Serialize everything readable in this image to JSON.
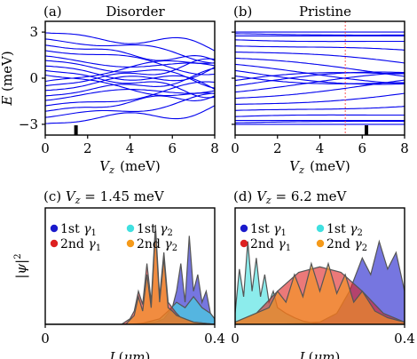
{
  "chart_data": [
    {
      "panel": "a",
      "type": "line",
      "label": "(a)",
      "title": "Disorder",
      "xlabel": "V_z (meV)",
      "ylabel": "E (meV)",
      "xlim": [
        0,
        8
      ],
      "ylim": [
        -3.7,
        3.7
      ],
      "xticks": [
        "0",
        "2",
        "4",
        "6",
        "8"
      ],
      "yticks": [
        "−3",
        "0",
        "3"
      ],
      "marker_x": 1.45,
      "color": "#0000ee",
      "band_edges": [
        2.95,
        2.55,
        2.15,
        1.8,
        1.45,
        1.15,
        0.8,
        0.5,
        0.2
      ],
      "band_ends": [
        2.0,
        1.4,
        1.0,
        0.6,
        0.3,
        -0.2,
        -0.6,
        -1.0,
        -1.4
      ]
    },
    {
      "panel": "b",
      "type": "line",
      "label": "(b)",
      "title": "Pristine",
      "xlabel": "V_z (meV)",
      "ylabel": "",
      "xlim": [
        0,
        8
      ],
      "ylim": [
        -3.7,
        3.7
      ],
      "xticks": [
        "0",
        "2",
        "4",
        "6",
        "8"
      ],
      "marker_x": 6.2,
      "dashed_x": 5.2,
      "color": "#0000ee",
      "band_edges": [
        2.9,
        2.5,
        2.1,
        1.7,
        1.3,
        0.9,
        0.5,
        0.15
      ],
      "band_ends": [
        2.7,
        2.0,
        1.3,
        0.7,
        0.1,
        -0.5,
        -1.1,
        -1.7
      ]
    },
    {
      "panel": "c",
      "type": "area",
      "label": "(c)",
      "title": "V_z = 1.45 meV",
      "xlabel": "L(μm)",
      "ylabel": "|ψ|²",
      "xlim": [
        0,
        0.4
      ],
      "xticks": [
        "0",
        "0.4"
      ],
      "legend": [
        "1st γ1",
        "1st γ2",
        "2nd γ1",
        "2nd γ2"
      ],
      "legend_colors": [
        "#1a1acc",
        "#40e0e0",
        "#dd2020",
        "#f59a1a"
      ],
      "series": [
        {
          "name": "1st γ1",
          "color": "#1a1acc",
          "x": [
            0.0,
            0.2,
            0.26,
            0.28,
            0.3,
            0.31,
            0.32,
            0.33,
            0.34,
            0.35,
            0.36,
            0.37,
            0.38,
            0.39,
            0.4
          ],
          "y": [
            0,
            0,
            0.02,
            0.05,
            0.15,
            0.3,
            0.55,
            0.2,
            0.8,
            0.3,
            0.45,
            0.2,
            0.3,
            0.1,
            0.05
          ]
        },
        {
          "name": "1st γ2",
          "color": "#40e0e0",
          "x": [
            0.0,
            0.22,
            0.27,
            0.29,
            0.31,
            0.33,
            0.35,
            0.37,
            0.39,
            0.4
          ],
          "y": [
            0,
            0,
            0.05,
            0.12,
            0.2,
            0.15,
            0.25,
            0.15,
            0.1,
            0.05
          ]
        },
        {
          "name": "2nd γ1",
          "color": "#dd2020",
          "x": [
            0.0,
            0.18,
            0.2,
            0.21,
            0.22,
            0.23,
            0.24,
            0.25,
            0.26,
            0.27,
            0.28,
            0.29,
            0.3,
            0.31,
            0.32,
            0.35,
            0.4
          ],
          "y": [
            0,
            0,
            0.05,
            0.12,
            0.3,
            0.18,
            0.55,
            0.2,
            0.9,
            0.25,
            0.65,
            0.2,
            0.15,
            0.1,
            0.06,
            0.02,
            0
          ]
        },
        {
          "name": "2nd γ2",
          "color": "#f59a1a",
          "x": [
            0.0,
            0.19,
            0.21,
            0.22,
            0.23,
            0.24,
            0.25,
            0.26,
            0.27,
            0.28,
            0.29,
            0.3,
            0.31,
            0.33,
            0.35,
            0.4
          ],
          "y": [
            0,
            0,
            0.08,
            0.25,
            0.12,
            0.45,
            0.15,
            0.85,
            0.2,
            0.6,
            0.15,
            0.12,
            0.08,
            0.05,
            0.02,
            0
          ]
        }
      ]
    },
    {
      "panel": "d",
      "type": "area",
      "label": "(d)",
      "title": "V_z = 6.2 meV",
      "xlabel": "L(μm)",
      "ylabel": "",
      "xlim": [
        0,
        0.4
      ],
      "xticks": [
        "0",
        "0.4"
      ],
      "legend": [
        "1st γ1",
        "1st γ2",
        "2nd γ1",
        "2nd γ2"
      ],
      "legend_colors": [
        "#1a1acc",
        "#40e0e0",
        "#dd2020",
        "#f59a1a"
      ],
      "series": [
        {
          "name": "1st γ1",
          "color": "#1a1acc",
          "x": [
            0.0,
            0.1,
            0.2,
            0.24,
            0.27,
            0.3,
            0.32,
            0.34,
            0.36,
            0.38,
            0.4
          ],
          "y": [
            0,
            0,
            0.02,
            0.1,
            0.3,
            0.6,
            0.45,
            0.75,
            0.5,
            0.65,
            0.3
          ]
        },
        {
          "name": "1st γ2",
          "color": "#40e0e0",
          "x": [
            0.0,
            0.01,
            0.02,
            0.03,
            0.04,
            0.05,
            0.06,
            0.07,
            0.08,
            0.09,
            0.1,
            0.12,
            0.14,
            0.16,
            0.2,
            0.3,
            0.4
          ],
          "y": [
            0.1,
            0.5,
            0.25,
            0.75,
            0.3,
            0.6,
            0.25,
            0.45,
            0.2,
            0.3,
            0.15,
            0.1,
            0.06,
            0.03,
            0,
            0,
            0
          ]
        },
        {
          "name": "2nd γ1",
          "color": "#dd2020",
          "x": [
            0.0,
            0.05,
            0.1,
            0.15,
            0.2,
            0.25,
            0.3,
            0.35,
            0.4
          ],
          "y": [
            0.02,
            0.1,
            0.3,
            0.47,
            0.52,
            0.47,
            0.3,
            0.1,
            0.02
          ]
        },
        {
          "name": "2nd γ2",
          "color": "#f59a1a",
          "x": [
            0.0,
            0.08,
            0.1,
            0.12,
            0.14,
            0.16,
            0.18,
            0.2,
            0.22,
            0.24,
            0.26,
            0.28,
            0.3,
            0.33,
            0.36,
            0.4
          ],
          "y": [
            0.02,
            0.15,
            0.3,
            0.2,
            0.45,
            0.25,
            0.55,
            0.3,
            0.55,
            0.28,
            0.45,
            0.2,
            0.3,
            0.12,
            0.06,
            0.02
          ]
        }
      ]
    }
  ]
}
